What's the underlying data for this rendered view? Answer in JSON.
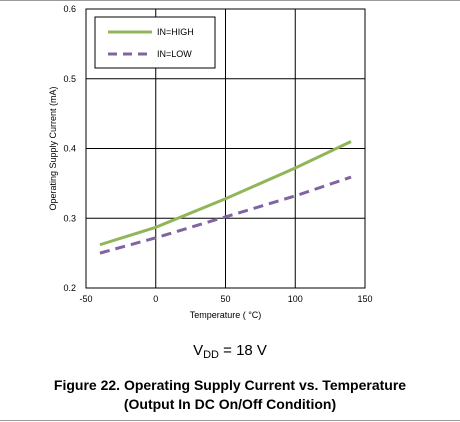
{
  "chart_data": {
    "type": "line",
    "xlabel": "Temperature ( °C)",
    "ylabel": "Operating Supply Current (mA)",
    "xlim": [
      -50,
      150
    ],
    "ylim": [
      0.2,
      0.6
    ],
    "xticks": [
      "-50",
      "0",
      "50",
      "100",
      "150"
    ],
    "yticks": [
      "0.2",
      "0.3",
      "0.4",
      "0.5",
      "0.6"
    ],
    "grid": true,
    "legend_position": "top-left",
    "series": [
      {
        "name": "IN=HIGH",
        "color": "#92b55a",
        "style": "solid",
        "x": [
          -40,
          0,
          50,
          100,
          140
        ],
        "y": [
          0.262,
          0.287,
          0.328,
          0.372,
          0.41
        ]
      },
      {
        "name": "IN=LOW",
        "color": "#8064a2",
        "style": "dashed",
        "x": [
          -40,
          0,
          50,
          100,
          140
        ],
        "y": [
          0.25,
          0.272,
          0.302,
          0.332,
          0.359
        ]
      }
    ]
  },
  "annotation": {
    "prefix": "V",
    "subscript": "DD",
    "suffix": " = 18 V"
  },
  "caption": {
    "line1": "Figure 22. Operating Supply Current vs. Temperature",
    "line2": "(Output In DC On/Off Condition)"
  }
}
